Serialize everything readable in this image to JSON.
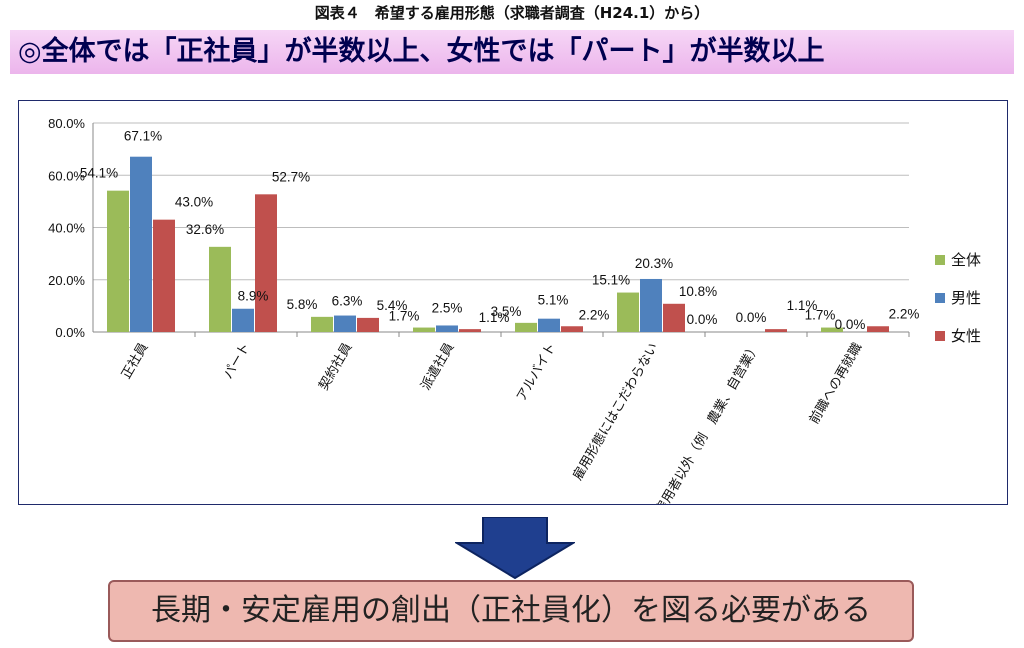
{
  "caption": "図表４　希望する雇用形態（求職者調査（H24.1）から）",
  "headline": "◎全体では「正社員」が半数以上、女性では「パート」が半数以上",
  "conclusion": "長期・安定雇用の創出（正社員化）を図る必要がある",
  "chart_data": {
    "type": "bar",
    "categories": [
      "正社員",
      "パート",
      "契約社員",
      "派遣社員",
      "アルバイト",
      "雇用形態にはこだわらない",
      "雇用者以外（例　農業、自営業）",
      "前職への再就職"
    ],
    "series": [
      {
        "name": "全体",
        "color": "#9bbb59",
        "values": [
          54.1,
          32.6,
          5.8,
          1.7,
          3.5,
          15.1,
          0.0,
          1.7
        ],
        "labels": [
          "54.1%",
          "32.6%",
          "5.8%",
          "1.7%",
          "3.5%",
          "15.1%",
          "0.0%",
          "1.7%"
        ]
      },
      {
        "name": "男性",
        "color": "#4f81bd",
        "values": [
          67.1,
          8.9,
          6.3,
          2.5,
          5.1,
          20.3,
          0.0,
          0.0
        ],
        "labels": [
          "67.1%",
          "8.9%",
          "6.3%",
          "2.5%",
          "5.1%",
          "20.3%",
          "0.0%",
          "0.0%"
        ]
      },
      {
        "name": "女性",
        "color": "#c0504d",
        "values": [
          43.0,
          52.7,
          5.4,
          1.1,
          2.2,
          10.8,
          1.1,
          2.2
        ],
        "labels": [
          "43.0%",
          "52.7%",
          "5.4%",
          "1.1%",
          "2.2%",
          "10.8%",
          "1.1%",
          "2.2%"
        ]
      }
    ],
    "yticks": [
      "0.0%",
      "20.0%",
      "40.0%",
      "60.0%",
      "80.0%"
    ],
    "ylim": [
      0,
      80
    ],
    "grid": true,
    "legend": "right"
  },
  "colors": {
    "arrow": "#1f3f8f",
    "headline_text": "#000050"
  }
}
